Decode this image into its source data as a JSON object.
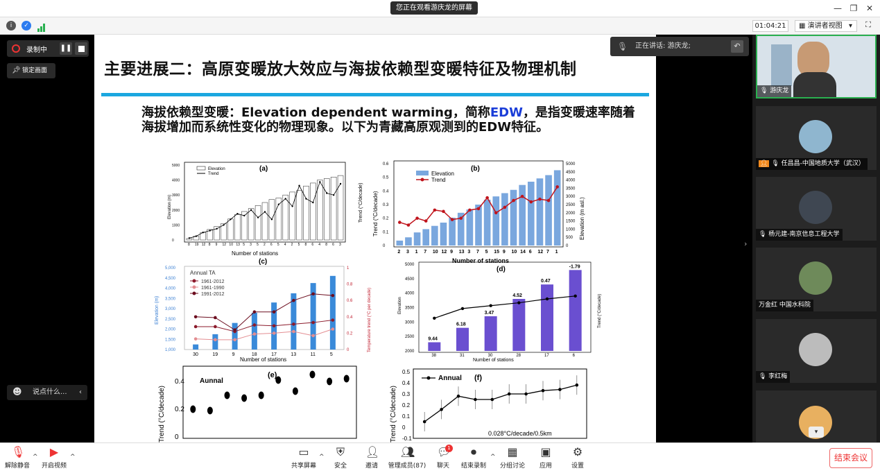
{
  "titlebar": {
    "share_notice": "您正在观看游庆龙的屏幕"
  },
  "infobar": {
    "timer": "01:04:21",
    "view_label": "演讲者视图"
  },
  "controls": {
    "record_label": "录制中",
    "lock_label": "锁定画面",
    "chat_placeholder": "说点什么..."
  },
  "speaking": {
    "label": "正在讲话: 游庆龙;"
  },
  "slide": {
    "title": "主要进展二：高原变暖放大效应与海拔依赖型变暖特征及物理机制",
    "body_pre": "海拔依赖型变暖：Elevation dependent warming，简称",
    "body_edw": "EDW",
    "body_post": "，是指变暖速率随着海拔增加而系统性变化的物理现象。以下为青藏高原观测到的EDW特征。"
  },
  "charts": {
    "a": {
      "tag": "(a)",
      "legend1": "Elevation",
      "legend2": "Trend",
      "xlabel": "Number of stations",
      "yl": "Elevation (m)",
      "yr": "Trend (°C/decade)"
    },
    "b": {
      "tag": "(b)",
      "legend1": "Elevation",
      "legend2": "Trend",
      "xlabel": "Number of stations",
      "yl": "Trend (°C/decade)",
      "yr": "Elevation (m asl.)"
    },
    "c": {
      "tag": "(c)",
      "title": "Annual TA",
      "legend1": "1961-2012",
      "legend2": "1961-1990",
      "legend3": "1991-2012",
      "xlabel": "Number of stations",
      "yl": "Elevation (m)",
      "yr": "Temperature trend (°C per decade)"
    },
    "d": {
      "tag": "(d)",
      "xlabel": "Number of stations",
      "yl": "Elevation",
      "yr": "Trend (°C/decade)"
    },
    "e": {
      "tag": "(e)",
      "title": "Aunnal",
      "yl": "Trend (°C/decade)"
    },
    "f": {
      "tag": "(f)",
      "title": "Annual",
      "yl": "Trend (°C/decade)",
      "note": "0.028°C/decade/0.5km"
    }
  },
  "chart_data": [
    {
      "type": "bar",
      "id": "a",
      "categories": [
        "8",
        "19",
        "12",
        "8",
        "9",
        "12",
        "10",
        "13",
        "5",
        "3",
        "5",
        "2",
        "6",
        "5",
        "4",
        "2",
        "5",
        "8",
        "6",
        "4",
        "8",
        "6",
        "3"
      ],
      "values": [
        100,
        250,
        500,
        700,
        900,
        1100,
        1400,
        1700,
        1900,
        2100,
        2300,
        2500,
        2700,
        2800,
        3000,
        3200,
        3300,
        3600,
        3800,
        4000,
        4100,
        4200,
        4300
      ],
      "ylim": [
        0,
        5000
      ],
      "trend": [
        0.01,
        0.02,
        0.04,
        0.05,
        0.06,
        0.08,
        0.11,
        0.14,
        0.13,
        0.16,
        0.12,
        0.15,
        0.11,
        0.19,
        0.22,
        0.18,
        0.29,
        0.22,
        0.2,
        0.31,
        0.25,
        0.24,
        0.3
      ]
    },
    {
      "type": "bar",
      "id": "b",
      "categories": [
        "2",
        "3",
        "1",
        "7",
        "10",
        "12",
        "9",
        "13",
        "3",
        "7",
        "5",
        "15",
        "9",
        "10",
        "14",
        "6",
        "12",
        "7",
        "1"
      ],
      "values": [
        300,
        500,
        800,
        1000,
        1200,
        1400,
        1700,
        2000,
        2200,
        2500,
        2800,
        3000,
        3200,
        3400,
        3700,
        3900,
        4100,
        4300,
        4600
      ],
      "ylim": [
        0,
        5000
      ],
      "trend": [
        0.17,
        0.15,
        0.2,
        0.18,
        0.26,
        0.25,
        0.19,
        0.2,
        0.26,
        0.27,
        0.35,
        0.24,
        0.28,
        0.33,
        0.36,
        0.32,
        0.34,
        0.33,
        0.43
      ]
    },
    {
      "type": "bar",
      "id": "c",
      "categories": [
        "30",
        "19",
        "9",
        "18",
        "17",
        "13",
        "11",
        "5"
      ],
      "values": [
        1250,
        1750,
        2300,
        2800,
        3300,
        3750,
        4250,
        4600
      ],
      "ylim": [
        1000,
        5000
      ],
      "series": [
        {
          "name": "1961-2012",
          "values": [
            0.28,
            0.28,
            0.22,
            0.3,
            0.29,
            0.31,
            0.33,
            0.36
          ]
        },
        {
          "name": "1961-1990",
          "values": [
            0.13,
            0.12,
            0.12,
            0.19,
            0.2,
            0.22,
            0.17,
            0.25
          ]
        },
        {
          "name": "1991-2012",
          "values": [
            0.4,
            0.39,
            0.24,
            0.46,
            0.46,
            0.6,
            0.68,
            0.66
          ]
        }
      ]
    },
    {
      "type": "bar",
      "id": "d",
      "categories": [
        "38",
        "31",
        "30",
        "28",
        "17",
        "6"
      ],
      "values": [
        2300,
        2800,
        3200,
        3800,
        4300,
        4800
      ],
      "labels": [
        "9.44",
        "6.18",
        "3.47",
        "4.52",
        "0.47",
        "-1.79"
      ],
      "ylim": [
        2000,
        5000
      ],
      "trend": [
        0.34,
        0.44,
        0.47,
        0.5,
        0.54,
        0.57
      ]
    },
    {
      "type": "line",
      "id": "e",
      "title": "Aunnal",
      "values": [
        0.2,
        0.19,
        0.3,
        0.28,
        0.3,
        0.41,
        0.33,
        0.45,
        0.4,
        0.42
      ]
    },
    {
      "type": "line",
      "id": "f",
      "title": "Annual",
      "values": [
        0.05,
        0.16,
        0.28,
        0.25,
        0.25,
        0.3,
        0.3,
        0.33,
        0.34,
        0.38
      ]
    }
  ],
  "participants": [
    {
      "name": "游庆龙"
    },
    {
      "name": "任昌昌-中国地质大学（武汉）"
    },
    {
      "name": "杨元建-南京信息工程大学"
    },
    {
      "name": "万金红 中国水科院"
    },
    {
      "name": "李红梅"
    }
  ],
  "bottombar": {
    "mute": "解除静音",
    "video": "开启视频",
    "share": "共享屏幕",
    "security": "安全",
    "invite": "邀请",
    "members": "管理成员(87)",
    "chat": "聊天",
    "chat_badge": "1",
    "end_record": "结束录制",
    "breakout": "分组讨论",
    "apps": "应用",
    "settings": "设置",
    "end_meeting": "结束会议"
  },
  "colors": {
    "accent": "#1ba7e0",
    "end": "#e33333",
    "edw": "#1a3dd8"
  }
}
